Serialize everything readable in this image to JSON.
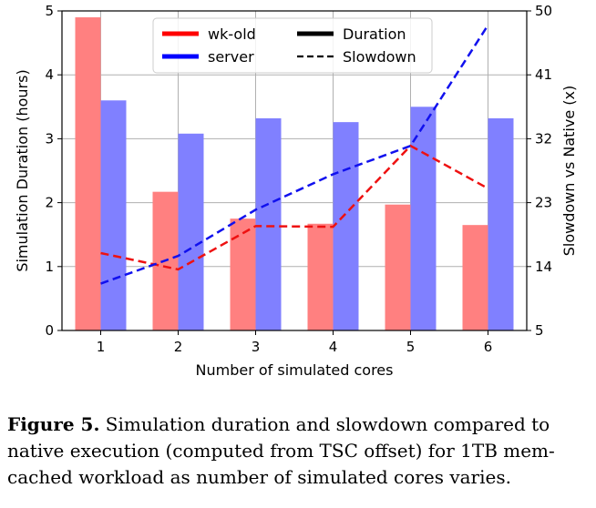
{
  "chart_data": {
    "type": "bar",
    "x": [
      1,
      2,
      3,
      4,
      5,
      6
    ],
    "xlabel": "Number of simulated cores",
    "ylabel": "Simulation Duration (hours)",
    "y2label": "Slowdown vs Native (x)",
    "ylim": [
      0,
      5
    ],
    "y2lim": [
      5,
      50
    ],
    "yticks": [
      0,
      1,
      2,
      3,
      4,
      5
    ],
    "y2ticks": [
      5,
      14,
      23,
      32,
      41,
      50
    ],
    "grid": true,
    "legend_position": "top-center",
    "series": [
      {
        "name": "wk-old",
        "kind": "bar",
        "axis": "left",
        "color": "#ff8080",
        "values": [
          4.9,
          2.17,
          1.75,
          1.67,
          1.97,
          1.65
        ]
      },
      {
        "name": "server",
        "kind": "bar",
        "axis": "left",
        "color": "#8080ff",
        "values": [
          3.6,
          3.08,
          3.32,
          3.26,
          3.5,
          3.32
        ]
      },
      {
        "name": "wk-old",
        "kind": "line",
        "axis": "right",
        "color": "#ee1111",
        "values": [
          15.9,
          13.6,
          19.7,
          19.6,
          31.0,
          25.0
        ]
      },
      {
        "name": "server",
        "kind": "line",
        "axis": "right",
        "color": "#1111ee",
        "values": [
          11.6,
          15.5,
          22.0,
          27.0,
          31.0,
          48.0
        ]
      }
    ],
    "legend": [
      {
        "label": "wk-old",
        "style": "solid",
        "color": "#ff0000"
      },
      {
        "label": "Duration",
        "style": "solid",
        "color": "#000000"
      },
      {
        "label": "server",
        "style": "solid",
        "color": "#0000ff"
      },
      {
        "label": "Slowdown",
        "style": "dashed",
        "color": "#000000"
      }
    ]
  },
  "caption": {
    "label": "Figure 5.",
    "text": "Simulation duration and slowdown compared to native execution (computed from TSC offset) for 1TB mem-cached workload as number of simulated cores varies."
  }
}
